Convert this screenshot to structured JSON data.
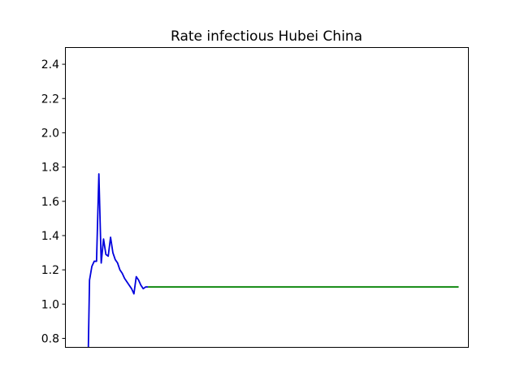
{
  "chart_data": {
    "type": "line",
    "title": "Rate infectious Hubei China",
    "xlabel": "",
    "ylabel": "",
    "x_ticks_visible": false,
    "xlim": [
      -10.5,
      162
    ],
    "ylim": [
      0.75,
      2.5
    ],
    "yticks": [
      0.8,
      1.0,
      1.2,
      1.4,
      1.6,
      1.8,
      2.0,
      2.2,
      2.4
    ],
    "ytick_labels": [
      "0.8",
      "1.0",
      "1.2",
      "1.4",
      "1.6",
      "1.8",
      "2.0",
      "2.2",
      "2.4"
    ],
    "grid": false,
    "series": [
      {
        "color": "#0000dd",
        "x": [
          -0.5,
          0,
          1,
          2,
          3,
          4,
          5,
          6,
          7,
          8,
          9,
          10,
          11,
          12,
          13,
          14,
          15,
          16,
          17,
          18,
          19,
          20,
          21,
          22,
          23,
          24,
          25
        ],
        "y": [
          0.75,
          1.14,
          1.22,
          1.25,
          1.25,
          1.76,
          1.24,
          1.38,
          1.29,
          1.28,
          1.39,
          1.3,
          1.26,
          1.24,
          1.2,
          1.18,
          1.15,
          1.13,
          1.11,
          1.09,
          1.06,
          1.16,
          1.14,
          1.11,
          1.09,
          1.1,
          1.1
        ]
      },
      {
        "color": "#008000",
        "x": [
          25,
          158
        ],
        "y": [
          1.1,
          1.1
        ]
      }
    ]
  }
}
